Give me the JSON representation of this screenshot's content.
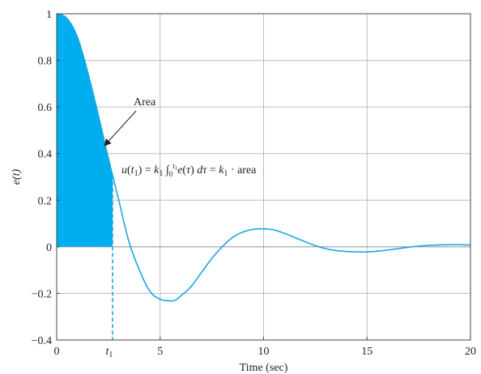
{
  "chart_data": {
    "type": "line",
    "title": "",
    "xlabel": "Time (sec)",
    "ylabel": "e(t)",
    "xlim": [
      0,
      20
    ],
    "ylim": [
      -0.4,
      1
    ],
    "grid": true,
    "x_ticks": [
      0,
      5,
      10,
      15,
      20
    ],
    "x_tick_labels": [
      "0",
      "5",
      "10",
      "15",
      "20"
    ],
    "y_ticks": [
      -0.4,
      -0.2,
      0,
      0.2,
      0.4,
      0.6,
      0.8,
      1
    ],
    "y_tick_labels": [
      "−0.4",
      "−0.2",
      "0",
      "0.2",
      "0.4",
      "0.6",
      "0.8",
      "1"
    ],
    "line_color": "#1aa7e6",
    "fill_color": "#00aeef",
    "series": [
      {
        "x": [
          0,
          0.5,
          1,
          1.5,
          2,
          2.5,
          3,
          3.5,
          4,
          4.5,
          5,
          5.5,
          5.7,
          6,
          6.5,
          7,
          7.5,
          8,
          8.5,
          9,
          9.5,
          10,
          10.3,
          10.5,
          11,
          11.5,
          12,
          12.5,
          13,
          13.5,
          14,
          14.5,
          15,
          15.5,
          16,
          16.5,
          17,
          17.5,
          18,
          18.5,
          19,
          19.5,
          20
        ],
        "y": [
          1,
          0.98,
          0.9,
          0.75,
          0.57,
          0.38,
          0.2,
          0.02,
          -0.1,
          -0.19,
          -0.225,
          -0.232,
          -0.23,
          -0.21,
          -0.17,
          -0.11,
          -0.05,
          0.0,
          0.04,
          0.063,
          0.075,
          0.077,
          0.075,
          0.072,
          0.058,
          0.04,
          0.022,
          0.005,
          -0.008,
          -0.016,
          -0.02,
          -0.022,
          -0.022,
          -0.019,
          -0.014,
          -0.008,
          -0.002,
          0.003,
          0.006,
          0.008,
          0.009,
          0.009,
          0.008
        ]
      }
    ],
    "shaded_until_x": 2.7,
    "t1_x": 2.7,
    "t1_label": "t1",
    "annotations": {
      "area_label": "Area",
      "equation_text": "u(t1) = k1 ∫0t1 e(τ) dτ = k1 · area"
    }
  }
}
